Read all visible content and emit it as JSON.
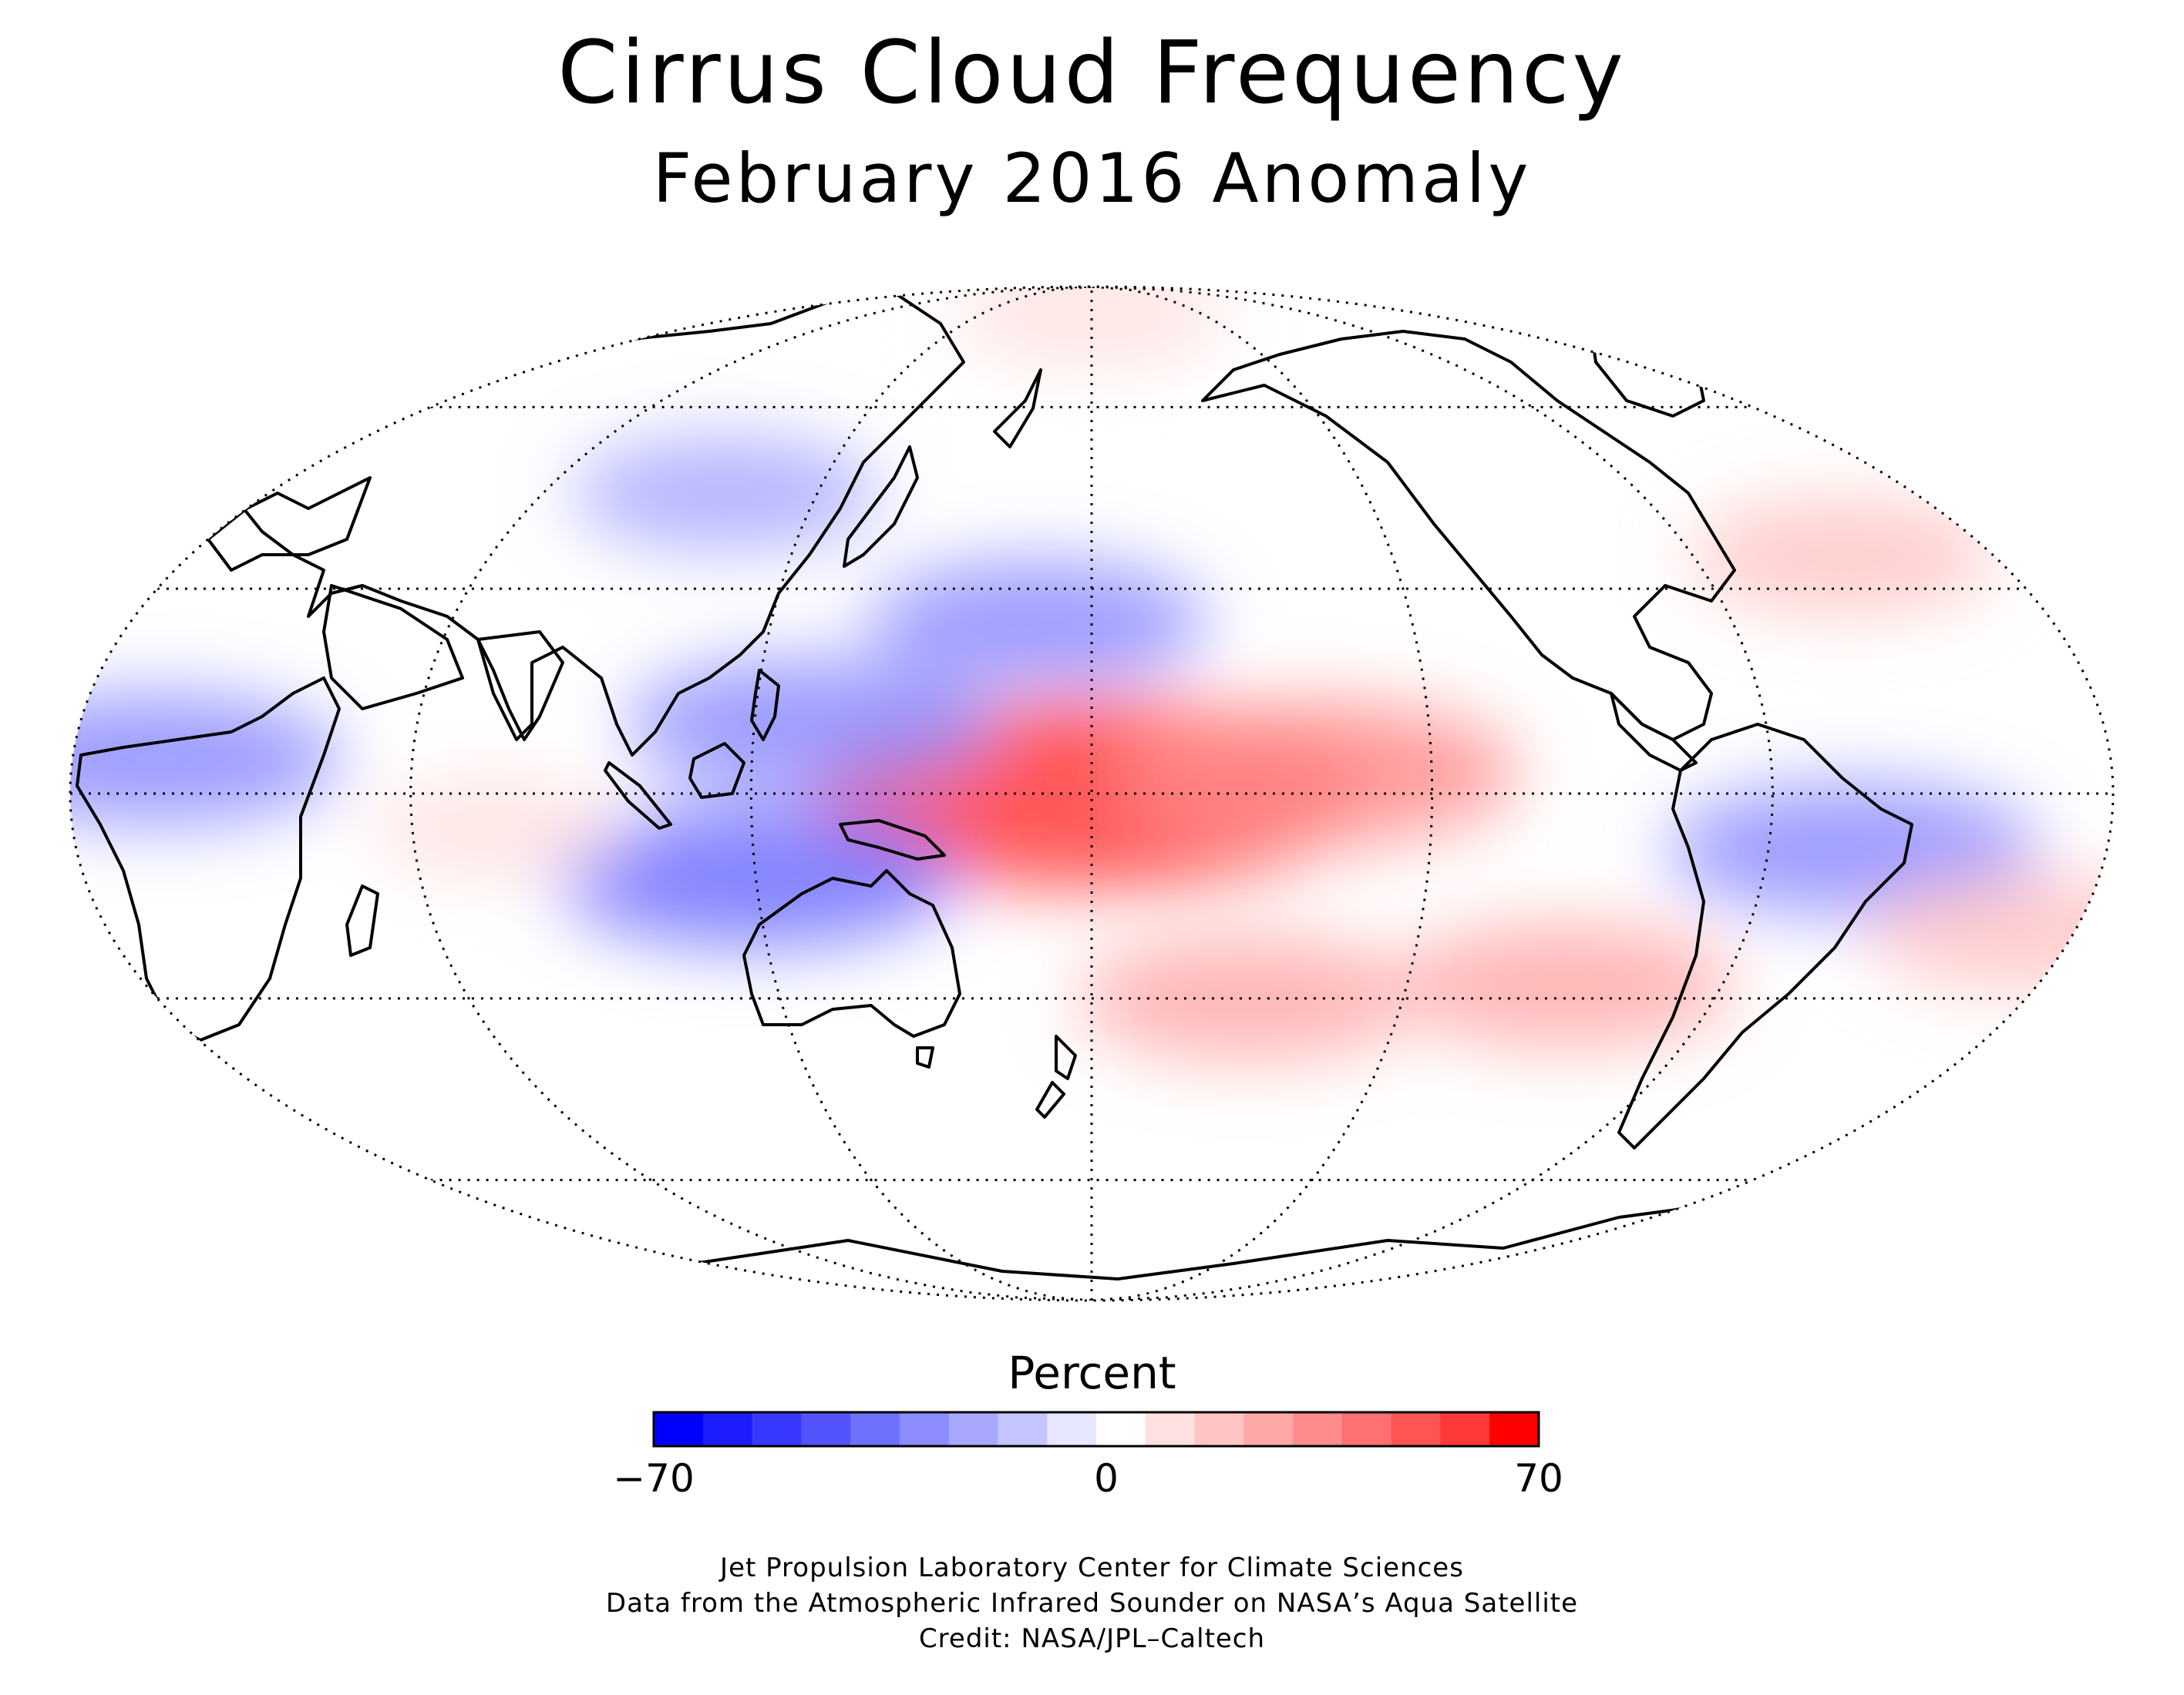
{
  "title": "Cirrus Cloud Frequency",
  "subtitle": "February 2016 Anomaly",
  "colorbar": {
    "label": "Percent",
    "min_label": "−70",
    "mid_label": "0",
    "max_label": "70",
    "min": -70,
    "max": 70,
    "colors": [
      "#0000ff",
      "#1c1cff",
      "#3838ff",
      "#5454ff",
      "#7070ff",
      "#8c8cff",
      "#a8a8ff",
      "#c4c4ff",
      "#e6e6ff",
      "#ffffff",
      "#ffe0e0",
      "#ffc4c4",
      "#ffa8a8",
      "#ff8c8c",
      "#ff7070",
      "#ff5454",
      "#ff3838",
      "#ff0000"
    ]
  },
  "credits": [
    "Jet Propulsion Laboratory Center for Climate Sciences",
    "Data from the Atmospheric Infrared Sounder on NASA’s Aqua Satellite",
    "Credit: NASA/JPL–Caltech"
  ],
  "map_data": {
    "projection": "mollweide",
    "central_longitude": 180,
    "graticule_latitudes": [
      -60,
      -30,
      0,
      30,
      60
    ],
    "graticule_longitude_step": 60,
    "anomalies": [
      {
        "region": "central equatorial pacific",
        "lon": 180,
        "lat": 0,
        "value": 60
      },
      {
        "region": "eastern tropical pacific",
        "lon": -140,
        "lat": 3,
        "value": 35
      },
      {
        "region": "south pacific convergence",
        "lon": -150,
        "lat": -30,
        "value": 25
      },
      {
        "region": "western tropical pacific",
        "lon": 130,
        "lat": 10,
        "value": -30
      },
      {
        "region": "maritime continent south",
        "lon": 120,
        "lat": -12,
        "value": -35
      },
      {
        "region": "brazil",
        "lon": -45,
        "lat": -8,
        "value": -30
      },
      {
        "region": "tropical africa",
        "lon": 15,
        "lat": 5,
        "value": -30
      },
      {
        "region": "north pacific",
        "lon": 170,
        "lat": 25,
        "value": -25
      },
      {
        "region": "east asia",
        "lon": 100,
        "lat": 45,
        "value": -20
      },
      {
        "region": "southeast pacific",
        "lon": -90,
        "lat": -28,
        "value": 25
      },
      {
        "region": "south atlantic",
        "lon": -10,
        "lat": -20,
        "value": 20
      },
      {
        "region": "north atlantic",
        "lon": -30,
        "lat": 35,
        "value": 20
      },
      {
        "region": "arctic",
        "lon": 180,
        "lat": 80,
        "value": 15
      },
      {
        "region": "indian ocean",
        "lon": 75,
        "lat": -5,
        "value": 12
      }
    ]
  }
}
